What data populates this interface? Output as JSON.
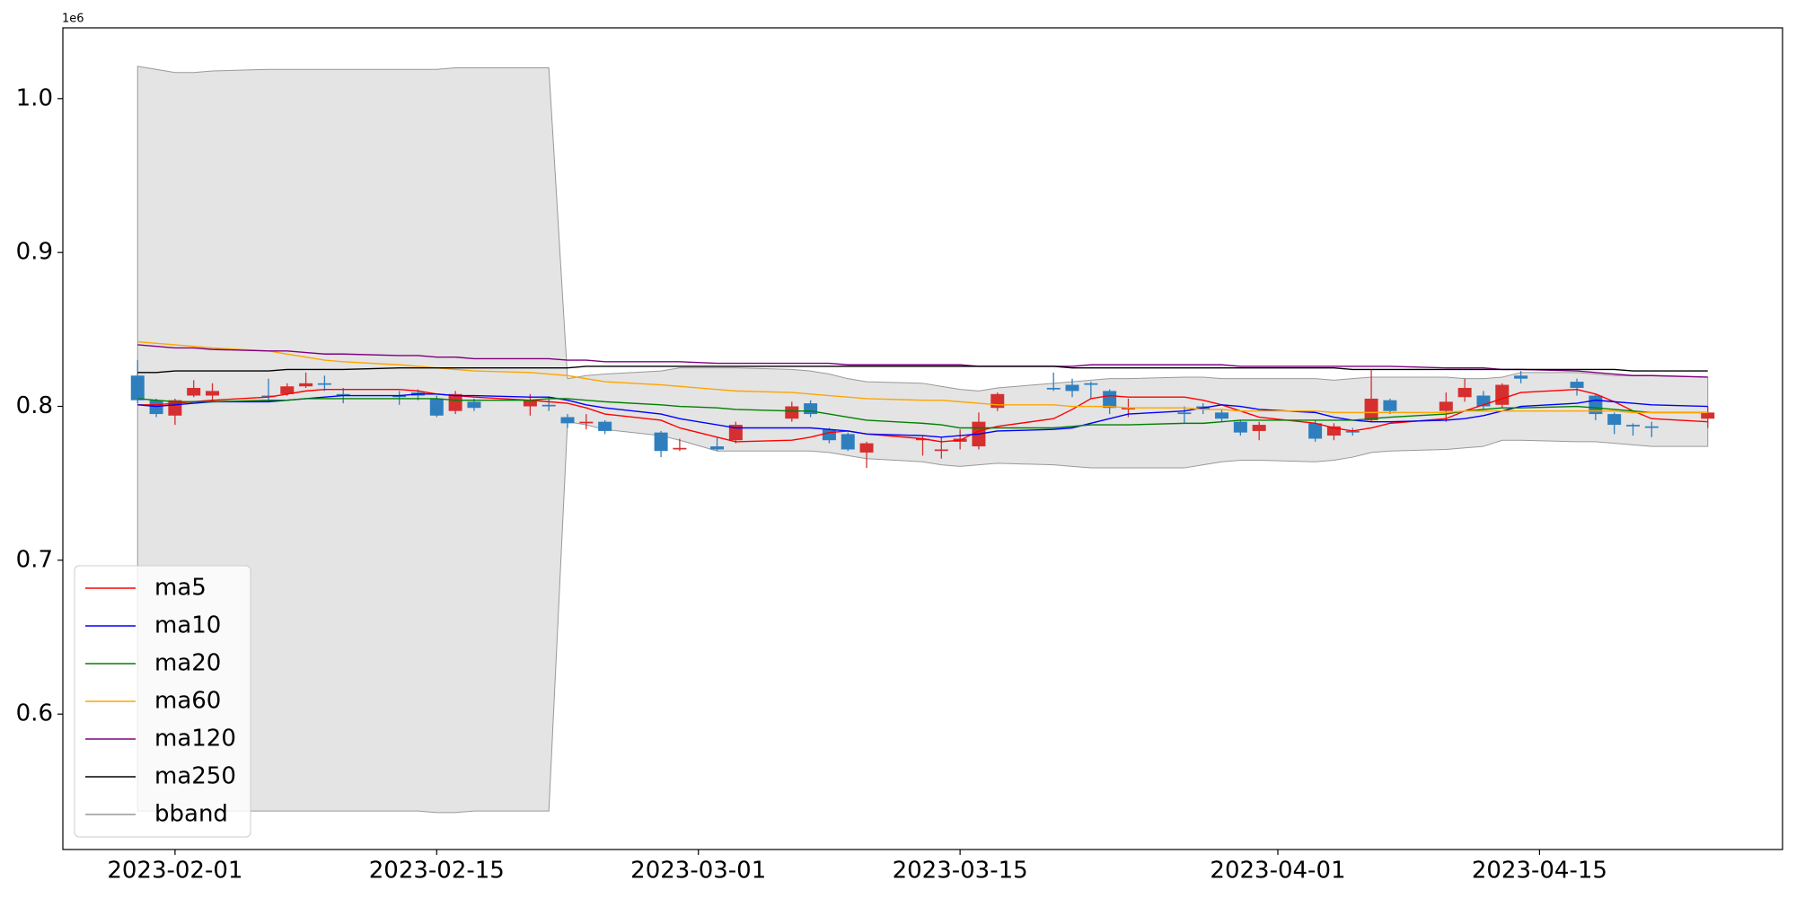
{
  "chart_data": {
    "type": "candlestick",
    "y_offset_label": "1e6",
    "x": [
      "2023-01-30",
      "2023-01-31",
      "2023-02-01",
      "2023-02-02",
      "2023-02-03",
      "2023-02-06",
      "2023-02-07",
      "2023-02-08",
      "2023-02-09",
      "2023-02-10",
      "2023-02-13",
      "2023-02-14",
      "2023-02-15",
      "2023-02-16",
      "2023-02-17",
      "2023-02-20",
      "2023-02-21",
      "2023-02-22",
      "2023-02-23",
      "2023-02-24",
      "2023-02-27",
      "2023-02-28",
      "2023-03-02",
      "2023-03-03",
      "2023-03-06",
      "2023-03-07",
      "2023-03-08",
      "2023-03-09",
      "2023-03-10",
      "2023-03-13",
      "2023-03-14",
      "2023-03-15",
      "2023-03-16",
      "2023-03-17",
      "2023-03-20",
      "2023-03-21",
      "2023-03-22",
      "2023-03-23",
      "2023-03-24",
      "2023-03-27",
      "2023-03-28",
      "2023-03-29",
      "2023-03-30",
      "2023-03-31",
      "2023-04-03",
      "2023-04-04",
      "2023-04-05",
      "2023-04-06",
      "2023-04-07",
      "2023-04-10",
      "2023-04-11",
      "2023-04-12",
      "2023-04-13",
      "2023-04-14",
      "2023-04-17",
      "2023-04-18",
      "2023-04-19",
      "2023-04-20",
      "2023-04-21",
      "2023-04-24"
    ],
    "open": [
      0.82,
      0.804,
      0.794,
      0.807,
      0.807,
      0.807,
      0.808,
      0.813,
      0.815,
      0.808,
      0.807,
      0.809,
      0.805,
      0.797,
      0.803,
      0.8,
      0.801,
      0.793,
      0.789,
      0.79,
      0.783,
      0.772,
      0.774,
      0.778,
      0.792,
      0.802,
      0.785,
      0.782,
      0.77,
      0.778,
      0.771,
      0.777,
      0.774,
      0.799,
      0.812,
      0.814,
      0.815,
      0.81,
      0.798,
      0.796,
      0.8,
      0.796,
      0.79,
      0.784,
      0.789,
      0.781,
      0.784,
      0.791,
      0.804,
      0.797,
      0.806,
      0.807,
      0.801,
      0.82,
      0.816,
      0.807,
      0.795,
      0.788,
      0.787,
      0.792
    ],
    "high": [
      0.83,
      0.805,
      0.805,
      0.817,
      0.815,
      0.818,
      0.815,
      0.822,
      0.82,
      0.812,
      0.81,
      0.811,
      0.807,
      0.81,
      0.805,
      0.808,
      0.806,
      0.795,
      0.795,
      0.791,
      0.784,
      0.779,
      0.78,
      0.79,
      0.803,
      0.804,
      0.786,
      0.783,
      0.777,
      0.781,
      0.78,
      0.785,
      0.796,
      0.809,
      0.822,
      0.818,
      0.816,
      0.811,
      0.805,
      0.8,
      0.802,
      0.798,
      0.791,
      0.79,
      0.791,
      0.789,
      0.786,
      0.824,
      0.805,
      0.809,
      0.818,
      0.81,
      0.815,
      0.823,
      0.818,
      0.808,
      0.796,
      0.789,
      0.79,
      0.8
    ],
    "low": [
      0.802,
      0.793,
      0.788,
      0.806,
      0.803,
      0.803,
      0.807,
      0.812,
      0.81,
      0.802,
      0.801,
      0.804,
      0.793,
      0.795,
      0.797,
      0.794,
      0.797,
      0.786,
      0.785,
      0.782,
      0.767,
      0.771,
      0.771,
      0.776,
      0.79,
      0.793,
      0.776,
      0.771,
      0.76,
      0.768,
      0.766,
      0.772,
      0.772,
      0.797,
      0.81,
      0.806,
      0.805,
      0.795,
      0.793,
      0.789,
      0.795,
      0.79,
      0.781,
      0.778,
      0.777,
      0.778,
      0.781,
      0.79,
      0.795,
      0.79,
      0.803,
      0.798,
      0.799,
      0.815,
      0.807,
      0.791,
      0.782,
      0.781,
      0.78,
      0.786
    ],
    "close": [
      0.804,
      0.795,
      0.804,
      0.812,
      0.81,
      0.806,
      0.813,
      0.815,
      0.814,
      0.807,
      0.806,
      0.807,
      0.794,
      0.808,
      0.799,
      0.804,
      0.8,
      0.789,
      0.79,
      0.784,
      0.771,
      0.773,
      0.772,
      0.788,
      0.8,
      0.795,
      0.778,
      0.772,
      0.776,
      0.779,
      0.772,
      0.779,
      0.79,
      0.808,
      0.811,
      0.81,
      0.814,
      0.799,
      0.799,
      0.795,
      0.798,
      0.792,
      0.783,
      0.788,
      0.779,
      0.787,
      0.783,
      0.805,
      0.797,
      0.803,
      0.812,
      0.8,
      0.814,
      0.818,
      0.812,
      0.795,
      0.788,
      0.787,
      0.786,
      0.796
    ],
    "up_color": "#d62f2f",
    "down_color": "#2f7fbf",
    "series": [
      {
        "name": "ma5",
        "color": "#ff0000",
        "values": [
          0.801,
          0.801,
          0.802,
          0.803,
          0.804,
          0.806,
          0.808,
          0.81,
          0.811,
          0.811,
          0.811,
          0.81,
          0.808,
          0.807,
          0.806,
          0.804,
          0.803,
          0.802,
          0.799,
          0.795,
          0.791,
          0.786,
          0.78,
          0.777,
          0.778,
          0.78,
          0.783,
          0.784,
          0.782,
          0.779,
          0.777,
          0.778,
          0.784,
          0.787,
          0.792,
          0.798,
          0.805,
          0.807,
          0.806,
          0.806,
          0.804,
          0.801,
          0.797,
          0.793,
          0.789,
          0.786,
          0.784,
          0.786,
          0.789,
          0.792,
          0.797,
          0.801,
          0.805,
          0.809,
          0.811,
          0.808,
          0.803,
          0.797,
          0.792,
          0.79
        ]
      },
      {
        "name": "ma10",
        "color": "#0000ff",
        "values": [
          0.801,
          0.8,
          0.801,
          0.802,
          0.803,
          0.803,
          0.804,
          0.805,
          0.806,
          0.807,
          0.807,
          0.808,
          0.808,
          0.807,
          0.807,
          0.806,
          0.806,
          0.804,
          0.801,
          0.799,
          0.795,
          0.792,
          0.788,
          0.786,
          0.786,
          0.786,
          0.785,
          0.784,
          0.782,
          0.781,
          0.78,
          0.781,
          0.782,
          0.784,
          0.785,
          0.786,
          0.789,
          0.792,
          0.795,
          0.797,
          0.799,
          0.801,
          0.8,
          0.798,
          0.796,
          0.793,
          0.791,
          0.79,
          0.79,
          0.791,
          0.792,
          0.794,
          0.797,
          0.8,
          0.802,
          0.804,
          0.803,
          0.802,
          0.801,
          0.8
        ]
      },
      {
        "name": "ma20",
        "color": "#008000",
        "values": [
          0.805,
          0.804,
          0.803,
          0.803,
          0.803,
          0.804,
          0.804,
          0.805,
          0.805,
          0.805,
          0.805,
          0.805,
          0.805,
          0.804,
          0.804,
          0.804,
          0.805,
          0.805,
          0.804,
          0.803,
          0.801,
          0.8,
          0.799,
          0.798,
          0.797,
          0.797,
          0.795,
          0.793,
          0.791,
          0.789,
          0.788,
          0.786,
          0.786,
          0.786,
          0.786,
          0.787,
          0.788,
          0.788,
          0.788,
          0.789,
          0.789,
          0.79,
          0.791,
          0.791,
          0.791,
          0.791,
          0.791,
          0.792,
          0.793,
          0.795,
          0.797,
          0.798,
          0.799,
          0.799,
          0.8,
          0.799,
          0.798,
          0.797,
          0.796,
          0.796
        ]
      },
      {
        "name": "ma60",
        "color": "#ffa500",
        "values": [
          0.842,
          0.841,
          0.84,
          0.839,
          0.838,
          0.836,
          0.834,
          0.832,
          0.83,
          0.829,
          0.827,
          0.826,
          0.825,
          0.824,
          0.823,
          0.822,
          0.821,
          0.82,
          0.818,
          0.816,
          0.814,
          0.813,
          0.811,
          0.81,
          0.809,
          0.808,
          0.807,
          0.806,
          0.805,
          0.804,
          0.804,
          0.803,
          0.802,
          0.801,
          0.801,
          0.8,
          0.8,
          0.8,
          0.799,
          0.799,
          0.798,
          0.798,
          0.797,
          0.797,
          0.797,
          0.796,
          0.796,
          0.796,
          0.796,
          0.796,
          0.797,
          0.797,
          0.797,
          0.797,
          0.797,
          0.797,
          0.797,
          0.796,
          0.796,
          0.796
        ]
      },
      {
        "name": "ma120",
        "color": "#800080",
        "values": [
          0.84,
          0.839,
          0.838,
          0.838,
          0.837,
          0.836,
          0.836,
          0.835,
          0.834,
          0.834,
          0.833,
          0.833,
          0.832,
          0.832,
          0.831,
          0.831,
          0.831,
          0.83,
          0.83,
          0.829,
          0.829,
          0.829,
          0.828,
          0.828,
          0.828,
          0.828,
          0.828,
          0.827,
          0.827,
          0.827,
          0.827,
          0.827,
          0.826,
          0.826,
          0.826,
          0.826,
          0.827,
          0.827,
          0.827,
          0.827,
          0.827,
          0.827,
          0.826,
          0.826,
          0.826,
          0.826,
          0.826,
          0.826,
          0.826,
          0.825,
          0.825,
          0.825,
          0.824,
          0.824,
          0.823,
          0.822,
          0.821,
          0.82,
          0.82,
          0.819
        ]
      },
      {
        "name": "ma250",
        "color": "#000000",
        "values": [
          0.822,
          0.822,
          0.823,
          0.823,
          0.823,
          0.823,
          0.824,
          0.824,
          0.824,
          0.824,
          0.825,
          0.825,
          0.825,
          0.825,
          0.825,
          0.825,
          0.825,
          0.825,
          0.826,
          0.826,
          0.826,
          0.826,
          0.826,
          0.826,
          0.826,
          0.826,
          0.826,
          0.826,
          0.826,
          0.826,
          0.826,
          0.826,
          0.826,
          0.826,
          0.826,
          0.825,
          0.825,
          0.825,
          0.825,
          0.825,
          0.825,
          0.825,
          0.825,
          0.825,
          0.825,
          0.825,
          0.824,
          0.824,
          0.824,
          0.824,
          0.824,
          0.824,
          0.824,
          0.824,
          0.824,
          0.824,
          0.824,
          0.823,
          0.823,
          0.823
        ]
      }
    ],
    "band": {
      "name": "bband",
      "color": "#999999",
      "fill": "#e4e4e4",
      "upper": [
        1.021,
        1.019,
        1.017,
        1.017,
        1.018,
        1.019,
        1.019,
        1.019,
        1.019,
        1.019,
        1.019,
        1.019,
        1.019,
        1.02,
        1.02,
        1.02,
        1.02,
        0.818,
        0.82,
        0.821,
        0.823,
        0.825,
        0.825,
        0.825,
        0.824,
        0.823,
        0.821,
        0.818,
        0.816,
        0.815,
        0.813,
        0.811,
        0.81,
        0.812,
        0.815,
        0.816,
        0.817,
        0.818,
        0.818,
        0.819,
        0.819,
        0.818,
        0.818,
        0.818,
        0.818,
        0.817,
        0.818,
        0.819,
        0.819,
        0.819,
        0.818,
        0.818,
        0.819,
        0.822,
        0.822,
        0.821,
        0.82,
        0.82,
        0.82,
        0.819
      ],
      "lower": [
        0.537,
        0.537,
        0.537,
        0.537,
        0.537,
        0.537,
        0.537,
        0.537,
        0.537,
        0.537,
        0.537,
        0.537,
        0.536,
        0.536,
        0.537,
        0.537,
        0.537,
        0.79,
        0.788,
        0.785,
        0.781,
        0.778,
        0.771,
        0.771,
        0.771,
        0.771,
        0.77,
        0.768,
        0.766,
        0.764,
        0.762,
        0.761,
        0.762,
        0.763,
        0.762,
        0.761,
        0.76,
        0.76,
        0.76,
        0.76,
        0.762,
        0.764,
        0.765,
        0.765,
        0.764,
        0.765,
        0.767,
        0.77,
        0.771,
        0.772,
        0.773,
        0.774,
        0.778,
        0.778,
        0.777,
        0.777,
        0.776,
        0.775,
        0.774,
        0.774
      ]
    },
    "xlim": [
      "2023-01-26",
      "2023-04-28"
    ],
    "xticks": [
      "2023-02-01",
      "2023-02-15",
      "2023-03-01",
      "2023-03-15",
      "2023-04-01",
      "2023-04-15"
    ],
    "ylim": [
      0.512,
      1.046
    ],
    "yticks": [
      0.6,
      0.7,
      0.8,
      0.9,
      {
        "value": 1.0,
        "label": "1.0"
      }
    ],
    "grid": false,
    "legend": "lower left"
  }
}
